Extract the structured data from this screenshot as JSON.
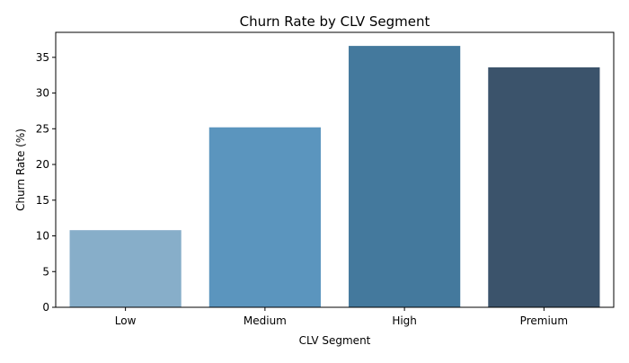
{
  "chart_data": {
    "type": "bar",
    "title": "Churn Rate by CLV Segment",
    "xlabel": "CLV Segment",
    "ylabel": "Churn Rate (%)",
    "categories": [
      "Low",
      "Medium",
      "High",
      "Premium"
    ],
    "values": [
      10.8,
      25.2,
      36.6,
      33.6
    ],
    "colors": [
      "#87aec9",
      "#5b95be",
      "#44799d",
      "#3b536b"
    ],
    "ylim": [
      0,
      38.5
    ],
    "yticks": [
      0,
      5,
      10,
      15,
      20,
      25,
      30,
      35
    ],
    "grid": false,
    "legend": "none"
  }
}
